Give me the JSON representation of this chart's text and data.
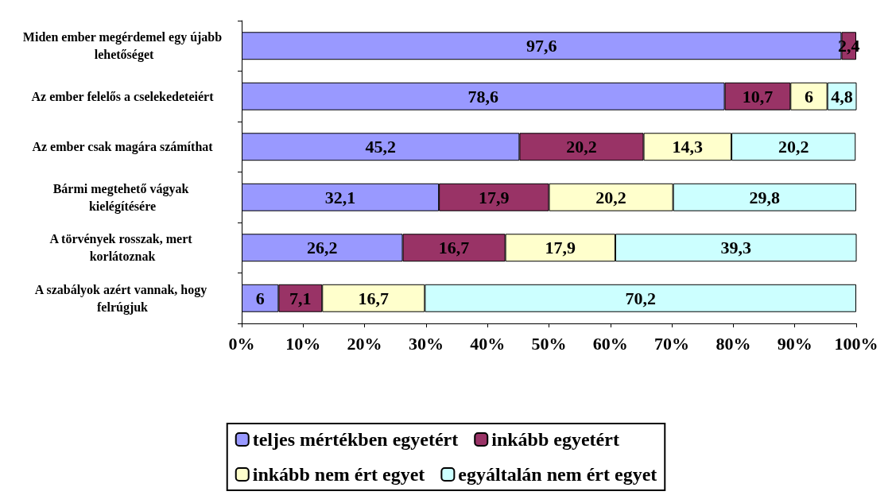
{
  "chart_data": {
    "type": "bar",
    "orientation": "horizontal",
    "stacked": true,
    "legend": "bottom",
    "grid": false,
    "categories": [
      "Miden ember megérdemel egy újabb lehetőséget",
      "Az ember felelős a cselekedeteiért",
      "Az ember csak magára számíthat",
      "Bármi megtehető vágyak kielégítésére",
      "A törvények rosszak, mert korlátoznak",
      "A szabályok azért vannak, hogy felrúgjuk"
    ],
    "xlim": [
      0,
      100
    ],
    "xticks": [
      {
        "value": 0,
        "label": "0%"
      },
      {
        "value": 10,
        "label": "10%"
      },
      {
        "value": 20,
        "label": "20%"
      },
      {
        "value": 30,
        "label": "30%"
      },
      {
        "value": 40,
        "label": "40%"
      },
      {
        "value": 50,
        "label": "50%"
      },
      {
        "value": 60,
        "label": "60%"
      },
      {
        "value": 70,
        "label": "70%"
      },
      {
        "value": 80,
        "label": "80%"
      },
      {
        "value": 90,
        "label": "90%"
      },
      {
        "value": 100,
        "label": "100%"
      }
    ],
    "series": [
      {
        "name": "teljes mértékben egyetért",
        "color": "#9999ff",
        "values": [
          97.6,
          78.6,
          45.2,
          32.1,
          26.2,
          6
        ],
        "value_labels": [
          "97,6",
          "78,6",
          "45,2",
          "32,1",
          "26,2",
          "6"
        ]
      },
      {
        "name": "inkább egyetért",
        "color": "#993366",
        "values": [
          2.4,
          10.7,
          20.2,
          17.9,
          16.7,
          7.1
        ],
        "value_labels": [
          "2,4",
          "10,7",
          "20,2",
          "17,9",
          "16,7",
          "7,1"
        ]
      },
      {
        "name": "inkább nem ért egyet",
        "color": "#ffffcc",
        "values": [
          null,
          6,
          14.3,
          20.2,
          17.9,
          16.7
        ],
        "value_labels": [
          null,
          "6",
          "14,3",
          "20,2",
          "17,9",
          "16,7"
        ]
      },
      {
        "name": "egyáltalán nem ért egyet",
        "color": "#ccffff",
        "values": [
          null,
          4.8,
          20.2,
          29.8,
          39.3,
          70.2
        ],
        "value_labels": [
          null,
          "4,8",
          "20,2",
          "29,8",
          "39,3",
          "70,2"
        ]
      }
    ]
  }
}
